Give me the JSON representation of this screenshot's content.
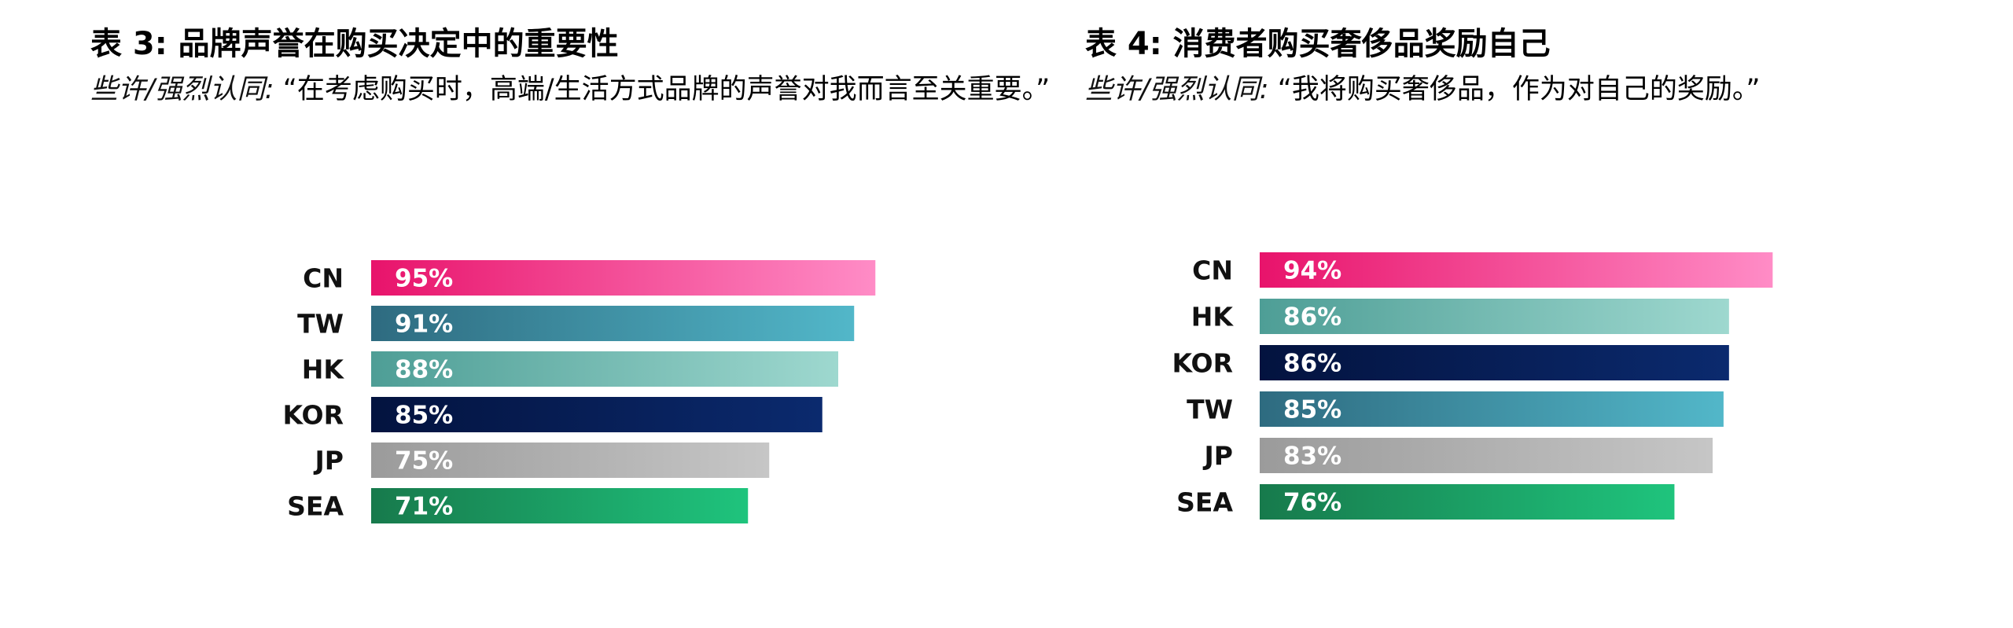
{
  "chart_data": [
    {
      "type": "bar",
      "orientation": "horizontal",
      "title": "表 3: 品牌声誉在购买决定中的重要性",
      "subtitle_lead": "些许/强烈认同:",
      "subtitle_quote": " “在考虑购买时，高端/生活方式品牌的声誉对我而言至关重要。”",
      "categories": [
        "CN",
        "TW",
        "HK",
        "KOR",
        "JP",
        "SEA"
      ],
      "values": [
        95,
        91,
        88,
        85,
        75,
        71
      ],
      "value_labels": [
        "95%",
        "91%",
        "88%",
        "85%",
        "75%",
        "71%"
      ],
      "xlim": [
        0,
        100
      ],
      "grid": false,
      "legend": "none",
      "gradients": [
        [
          "#e8136b",
          "#ff8cc6"
        ],
        [
          "#2e6b80",
          "#52b7c9"
        ],
        [
          "#4e9e96",
          "#9ed8cf"
        ],
        [
          "#03133f",
          "#0b2a6e"
        ],
        [
          "#9b9b9b",
          "#c6c6c6"
        ],
        [
          "#177a4c",
          "#1fc47d"
        ]
      ]
    },
    {
      "type": "bar",
      "orientation": "horizontal",
      "title": "表 4: 消费者购买奢侈品奖励自己",
      "subtitle_lead": "些许/强烈认同:",
      "subtitle_quote": " “我将购买奢侈品，作为对自己的奖励。”",
      "categories": [
        "CN",
        "HK",
        "KOR",
        "TW",
        "JP",
        "SEA"
      ],
      "values": [
        94,
        86,
        86,
        85,
        83,
        76
      ],
      "value_labels": [
        "94%",
        "86%",
        "86%",
        "85%",
        "83%",
        "76%"
      ],
      "xlim": [
        0,
        100
      ],
      "grid": false,
      "legend": "none",
      "gradients": [
        [
          "#e8136b",
          "#ff8cc6"
        ],
        [
          "#4e9e96",
          "#9ed8cf"
        ],
        [
          "#03133f",
          "#0b2a6e"
        ],
        [
          "#2e6b80",
          "#52b7c9"
        ],
        [
          "#9b9b9b",
          "#c6c6c6"
        ],
        [
          "#177a4c",
          "#1fc47d"
        ]
      ]
    }
  ]
}
